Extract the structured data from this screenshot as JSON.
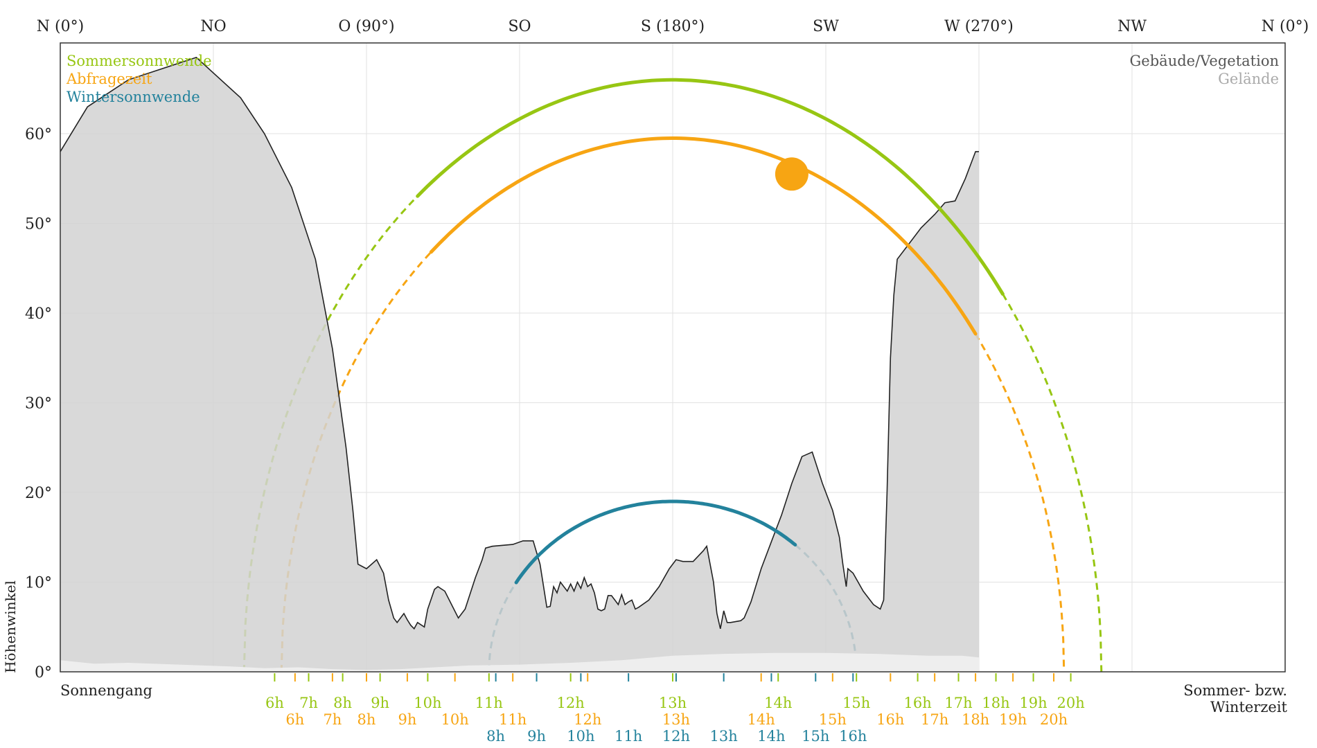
{
  "chart_data": {
    "type": "line",
    "ylabel": "Höhenwinkel",
    "xlim": [
      0,
      360
    ],
    "ylim": [
      0,
      70
    ],
    "azimuth_ticks": [
      {
        "az": 0,
        "label": "N (0°)"
      },
      {
        "az": 45,
        "label": "NO"
      },
      {
        "az": 90,
        "label": "O (90°)"
      },
      {
        "az": 135,
        "label": "SO"
      },
      {
        "az": 180,
        "label": "S (180°)"
      },
      {
        "az": 225,
        "label": "SW"
      },
      {
        "az": 270,
        "label": "W (270°)"
      },
      {
        "az": 315,
        "label": "NW"
      },
      {
        "az": 360,
        "label": "N (0°)"
      }
    ],
    "altitude_ticks": [
      {
        "v": 0,
        "label": "0°"
      },
      {
        "v": 10,
        "label": "10°"
      },
      {
        "v": 20,
        "label": "20°"
      },
      {
        "v": 30,
        "label": "30°"
      },
      {
        "v": 40,
        "label": "40°"
      },
      {
        "v": 50,
        "label": "50°"
      },
      {
        "v": 60,
        "label": "60°"
      }
    ],
    "grid": true,
    "legend_left": [
      {
        "name": "Sommersonnwende",
        "color": "#97c613"
      },
      {
        "name": "Abfragezeit",
        "color": "#f7a513"
      },
      {
        "name": "Wintersonnwende",
        "color": "#23829c"
      }
    ],
    "legend_right": [
      {
        "name": "Gebäude/Vegetation",
        "color": "#555555"
      },
      {
        "name": "Gelände",
        "color": "#aaaaaa"
      }
    ],
    "sun_paths": [
      {
        "name": "Sommersonnwende",
        "color": "#97c613",
        "rise": 54,
        "set": 306,
        "peak": 66,
        "visible_from": 105,
        "visible_to": 277,
        "y_hour": 1022,
        "hours": [
          [
            "6h",
            63
          ],
          [
            "7h",
            73
          ],
          [
            "8h",
            83
          ],
          [
            "9h",
            94
          ],
          [
            "10h",
            108
          ],
          [
            "11h",
            126
          ],
          [
            "12h",
            150
          ],
          [
            "13h",
            180
          ],
          [
            "14h",
            211
          ],
          [
            "15h",
            234
          ],
          [
            "16h",
            252
          ],
          [
            "17h",
            264
          ],
          [
            "18h",
            275
          ],
          [
            "19h",
            286
          ],
          [
            "20h",
            297
          ]
        ]
      },
      {
        "name": "Abfragezeit",
        "color": "#f7a513",
        "rise": 65,
        "set": 295,
        "peak": 59.5,
        "visible_from": 109,
        "visible_to": 269,
        "y_hour": 1046,
        "hours": [
          [
            "6h",
            69
          ],
          [
            "7h",
            80
          ],
          [
            "8h",
            90
          ],
          [
            "9h",
            102
          ],
          [
            "10h",
            116
          ],
          [
            "11h",
            133
          ],
          [
            "12h",
            155
          ],
          [
            "13h",
            181
          ],
          [
            "14h",
            206
          ],
          [
            "15h",
            227
          ],
          [
            "16h",
            244
          ],
          [
            "17h",
            257
          ],
          [
            "18h",
            269
          ],
          [
            "19h",
            280
          ],
          [
            "20h",
            292
          ]
        ]
      },
      {
        "name": "Wintersonnwende",
        "color": "#23829c",
        "rise": 126,
        "set": 234,
        "peak": 19,
        "visible_from": 134,
        "visible_to": 216,
        "y_hour": 1070,
        "hours": [
          [
            "8h",
            128
          ],
          [
            "9h",
            140
          ],
          [
            "10h",
            153
          ],
          [
            "11h",
            167
          ],
          [
            "12h",
            181
          ],
          [
            "13h",
            195
          ],
          [
            "14h",
            209
          ],
          [
            "15h",
            222
          ],
          [
            "16h",
            233
          ]
        ]
      }
    ],
    "current_sun": {
      "azimuth": 215,
      "altitude": 55.5
    },
    "obstacles": [
      [
        0,
        58
      ],
      [
        8,
        63
      ],
      [
        20,
        66
      ],
      [
        40,
        68.5
      ],
      [
        53,
        64
      ],
      [
        60,
        60
      ],
      [
        68,
        54
      ],
      [
        75,
        46
      ],
      [
        80,
        36
      ],
      [
        84,
        25
      ],
      [
        86,
        18
      ],
      [
        87.5,
        12
      ],
      [
        90,
        11.5
      ],
      [
        93,
        12.5
      ],
      [
        95,
        11
      ],
      [
        96.5,
        8
      ],
      [
        98,
        6
      ],
      [
        99,
        5.5
      ],
      [
        101,
        6.5
      ],
      [
        102,
        5.8
      ],
      [
        103,
        5.2
      ],
      [
        104,
        4.8
      ],
      [
        105,
        5.5
      ],
      [
        107,
        5
      ],
      [
        108,
        7
      ],
      [
        110,
        9.2
      ],
      [
        111,
        9.5
      ],
      [
        113,
        9
      ],
      [
        117,
        6
      ],
      [
        119,
        7
      ],
      [
        122,
        10.5
      ],
      [
        124,
        12.5
      ],
      [
        125,
        13.8
      ],
      [
        127,
        14
      ],
      [
        133,
        14.2
      ],
      [
        136,
        14.6
      ],
      [
        139,
        14.6
      ],
      [
        141,
        12
      ],
      [
        143,
        7.2
      ],
      [
        144,
        7.3
      ],
      [
        145,
        9.5
      ],
      [
        146,
        8.8
      ],
      [
        147,
        10
      ],
      [
        148,
        9.5
      ],
      [
        149,
        9
      ],
      [
        150,
        9.8
      ],
      [
        151,
        9
      ],
      [
        152,
        10
      ],
      [
        153,
        9.3
      ],
      [
        154,
        10.5
      ],
      [
        155,
        9.5
      ],
      [
        156,
        9.8
      ],
      [
        157,
        8.8
      ],
      [
        158,
        7
      ],
      [
        159,
        6.8
      ],
      [
        160,
        7
      ],
      [
        161,
        8.5
      ],
      [
        162,
        8.5
      ],
      [
        163,
        8
      ],
      [
        164,
        7.5
      ],
      [
        165,
        8.6
      ],
      [
        166,
        7.5
      ],
      [
        167,
        7.8
      ],
      [
        168,
        8
      ],
      [
        169,
        7
      ],
      [
        170,
        7.2
      ],
      [
        173,
        8
      ],
      [
        176,
        9.5
      ],
      [
        179,
        11.5
      ],
      [
        181,
        12.5
      ],
      [
        183,
        12.3
      ],
      [
        186,
        12.3
      ],
      [
        189,
        13.5
      ],
      [
        190,
        14
      ],
      [
        192,
        10
      ],
      [
        193,
        6.5
      ],
      [
        194,
        4.8
      ],
      [
        195,
        6.8
      ],
      [
        196,
        5.5
      ],
      [
        197,
        5.5
      ],
      [
        200,
        5.7
      ],
      [
        201,
        6
      ],
      [
        203,
        7.8
      ],
      [
        206,
        11.5
      ],
      [
        209,
        14.5
      ],
      [
        212,
        17.5
      ],
      [
        215,
        21
      ],
      [
        218,
        24
      ],
      [
        221,
        24.5
      ],
      [
        224,
        21
      ],
      [
        227,
        18
      ],
      [
        229,
        15
      ],
      [
        230,
        12
      ],
      [
        231,
        9.5
      ],
      [
        231.5,
        11.5
      ],
      [
        233,
        11
      ],
      [
        236,
        9
      ],
      [
        239,
        7.5
      ],
      [
        241,
        7
      ],
      [
        242,
        8
      ],
      [
        243,
        20
      ],
      [
        244,
        35
      ],
      [
        245,
        42
      ],
      [
        246,
        46
      ],
      [
        249,
        47.5
      ],
      [
        253,
        49.5
      ],
      [
        257,
        51
      ],
      [
        260,
        52.3
      ],
      [
        263,
        52.5
      ],
      [
        266,
        55
      ],
      [
        268,
        57
      ],
      [
        269,
        58
      ],
      [
        270,
        58
      ]
    ],
    "terrain": [
      [
        0,
        1.3
      ],
      [
        10,
        0.9
      ],
      [
        20,
        1
      ],
      [
        35,
        0.8
      ],
      [
        50,
        0.6
      ],
      [
        60,
        0.4
      ],
      [
        70,
        0.5
      ],
      [
        80,
        0.3
      ],
      [
        90,
        0.2
      ],
      [
        100,
        0.3
      ],
      [
        110,
        0.5
      ],
      [
        120,
        0.7
      ],
      [
        135,
        0.8
      ],
      [
        150,
        1
      ],
      [
        165,
        1.3
      ],
      [
        180,
        1.8
      ],
      [
        195,
        2
      ],
      [
        210,
        2.1
      ],
      [
        225,
        2.1
      ],
      [
        240,
        2
      ],
      [
        255,
        1.8
      ],
      [
        265,
        1.8
      ],
      [
        270,
        1.6
      ]
    ],
    "xlabel_left": "Sonnengang",
    "xlabel_right_1": "Sommer- bzw.",
    "xlabel_right_2": "Winterzeit"
  }
}
